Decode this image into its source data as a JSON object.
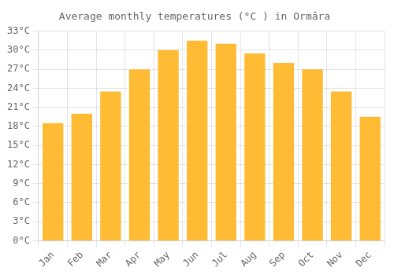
{
  "chart_data": {
    "type": "bar",
    "title": "Average monthly temperatures (°C ) in Ormāra",
    "categories": [
      "Jan",
      "Feb",
      "Mar",
      "Apr",
      "May",
      "Jun",
      "Jul",
      "Aug",
      "Sep",
      "Oct",
      "Nov",
      "Dec"
    ],
    "values": [
      18.5,
      20.0,
      23.5,
      27.0,
      30.0,
      31.5,
      31.0,
      29.5,
      28.0,
      27.0,
      23.5,
      19.5
    ],
    "color": "#FFBB33",
    "ylim": [
      0,
      33
    ],
    "yticks": [
      {
        "value": 0,
        "label": "0°C"
      },
      {
        "value": 3,
        "label": "3°C"
      },
      {
        "value": 6,
        "label": "6°C"
      },
      {
        "value": 9,
        "label": "9°C"
      },
      {
        "value": 12,
        "label": "12°C"
      },
      {
        "value": 15,
        "label": "15°C"
      },
      {
        "value": 18,
        "label": "18°C"
      },
      {
        "value": 21,
        "label": "21°C"
      },
      {
        "value": 24,
        "label": "24°C"
      },
      {
        "value": 27,
        "label": "27°C"
      },
      {
        "value": 30,
        "label": "30°C"
      },
      {
        "value": 33,
        "label": "33°C"
      }
    ],
    "grid": true
  }
}
